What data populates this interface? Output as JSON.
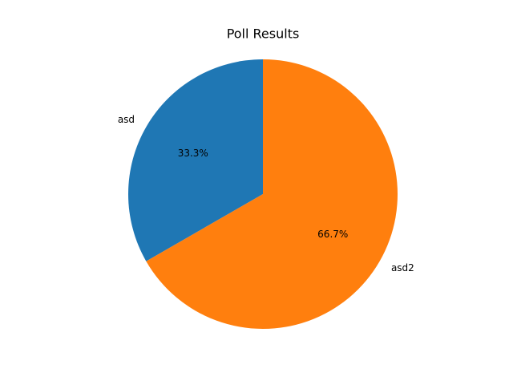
{
  "chart_data": {
    "type": "pie",
    "title": "Poll Results",
    "categories": [
      "asd",
      "asd2"
    ],
    "values": [
      33.3,
      66.7
    ],
    "value_labels": [
      "33.3%",
      "66.7%"
    ],
    "colors": [
      "#1f77b4",
      "#ff7f0e"
    ]
  }
}
